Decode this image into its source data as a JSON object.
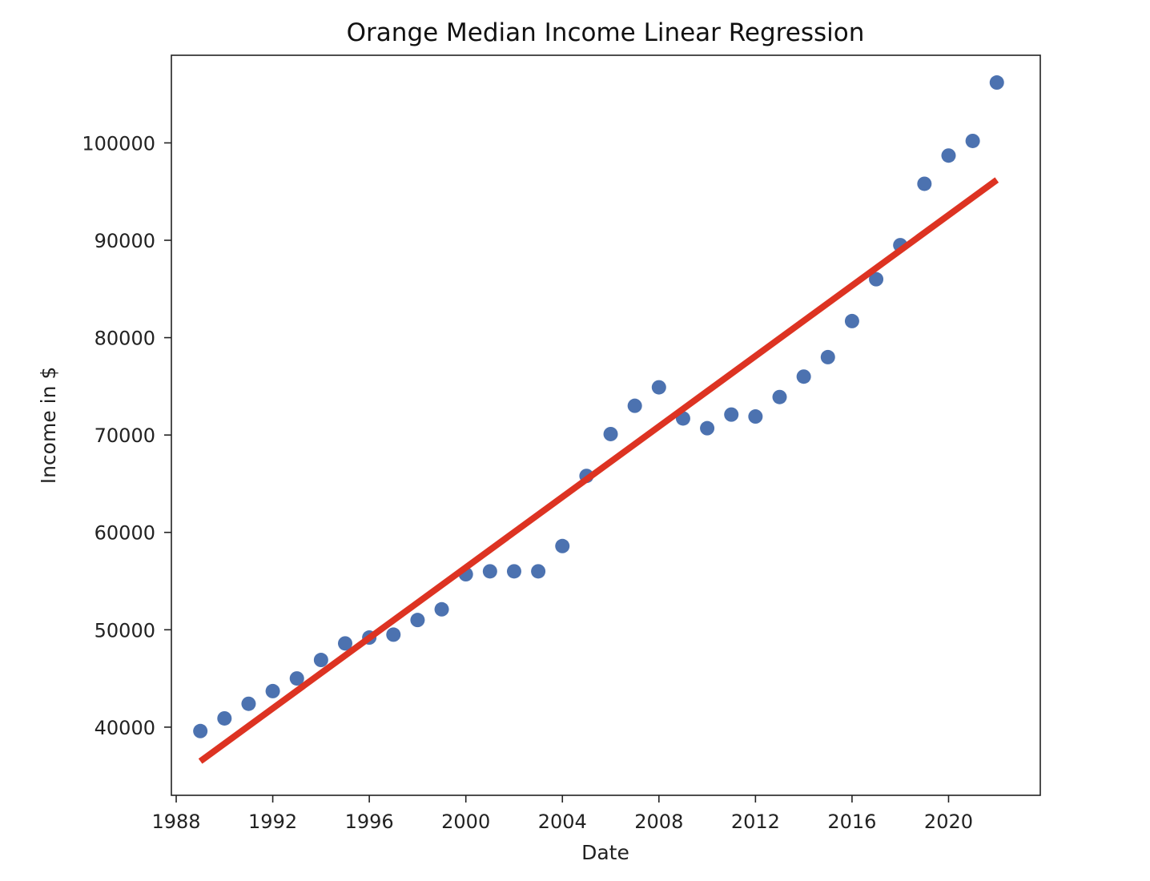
{
  "chart_data": {
    "type": "scatter",
    "title": "Orange Median Income Linear Regression",
    "xlabel": "Date",
    "ylabel": "Income in $",
    "xlim": [
      1987.8,
      2023.8
    ],
    "ylim": [
      33000,
      109000
    ],
    "xticks": [
      1988,
      1992,
      1996,
      2000,
      2004,
      2008,
      2012,
      2016,
      2020
    ],
    "yticks": [
      40000,
      50000,
      60000,
      70000,
      80000,
      90000,
      100000
    ],
    "grid": false,
    "legend": "none",
    "points": {
      "color": "#4c72b0",
      "x": [
        1989,
        1990,
        1991,
        1992,
        1993,
        1994,
        1995,
        1996,
        1997,
        1998,
        1999,
        2000,
        2001,
        2002,
        2003,
        2004,
        2005,
        2006,
        2007,
        2008,
        2009,
        2010,
        2011,
        2012,
        2013,
        2014,
        2015,
        2016,
        2017,
        2018,
        2019,
        2020,
        2021,
        2022
      ],
      "y": [
        39600,
        40900,
        42400,
        43700,
        45000,
        46900,
        48600,
        49200,
        49500,
        51000,
        52100,
        55700,
        56000,
        56000,
        56000,
        58600,
        65800,
        70100,
        73000,
        74900,
        71700,
        70700,
        72100,
        71900,
        73900,
        76000,
        78000,
        81700,
        86000,
        89500,
        95800,
        98700,
        100200,
        106200
      ]
    },
    "regression_line": {
      "color": "#dd3322",
      "x": [
        1989,
        2022
      ],
      "y": [
        36500,
        96200
      ]
    }
  }
}
